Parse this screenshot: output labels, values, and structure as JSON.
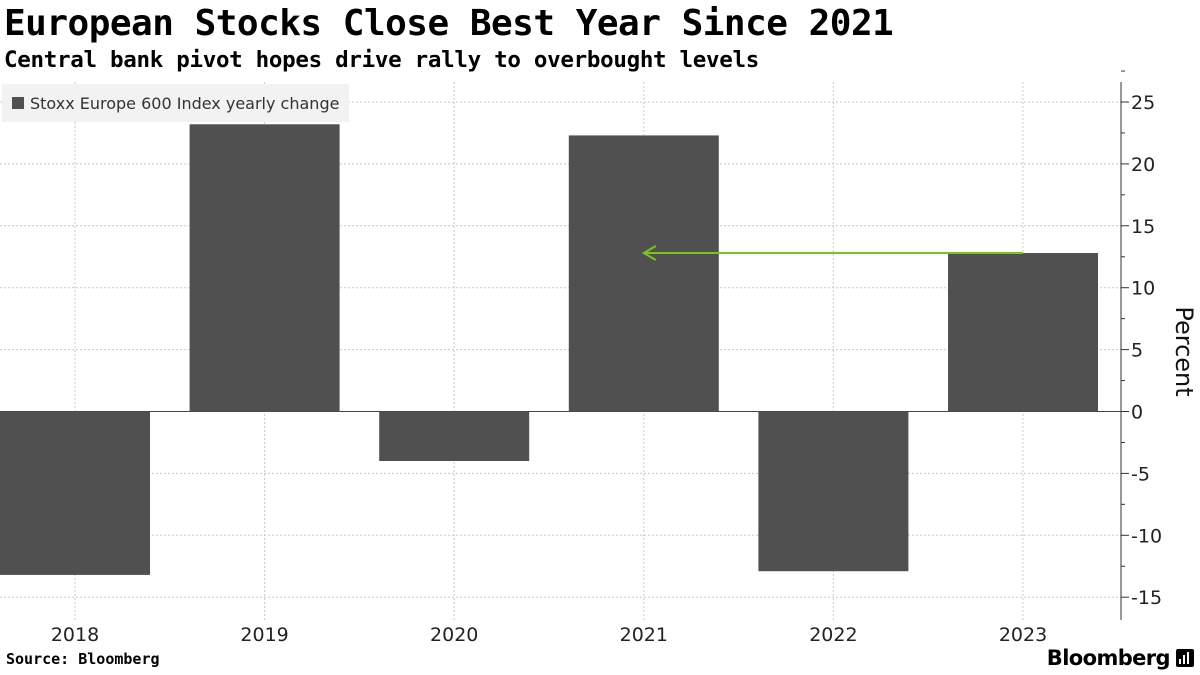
{
  "header": {
    "title": "European Stocks Close Best Year Since 2021",
    "subtitle": "Central bank pivot hopes drive rally to overbought levels"
  },
  "footer": {
    "source": "Source: Bloomberg",
    "brand": "Bloomberg"
  },
  "colors": {
    "bar": "#505050",
    "grid": "#c8c8c8",
    "axis": "#333333",
    "arrow": "#7ac618"
  },
  "chart_data": {
    "type": "bar",
    "categories": [
      "2018",
      "2019",
      "2020",
      "2021",
      "2022",
      "2023"
    ],
    "series": [
      {
        "name": "Stoxx Europe 600 Index yearly change",
        "values": [
          -13.2,
          23.2,
          -4.0,
          22.3,
          -12.9,
          12.8
        ]
      }
    ],
    "ylabel": "Percent",
    "ylim": [
      -17,
      26
    ],
    "yticks": [
      25,
      20,
      15,
      10,
      5,
      0,
      -5,
      -10,
      -15
    ],
    "y_axis_side": "right",
    "grid": true,
    "legend": "top-left",
    "annotation": {
      "type": "arrow",
      "from_category": "2023",
      "to_category": "2021",
      "y": 12.8
    }
  }
}
